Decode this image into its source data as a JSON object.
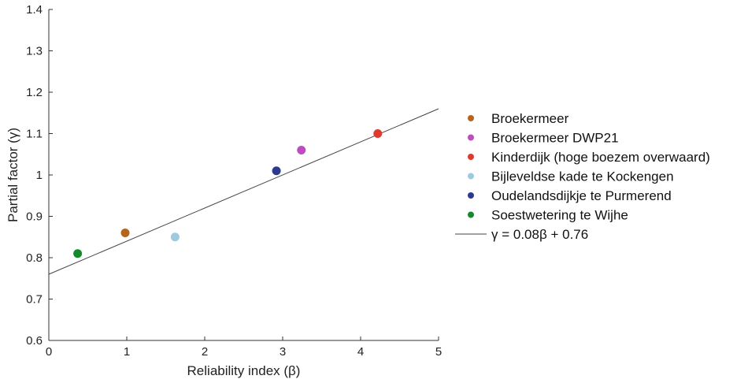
{
  "chart_data": {
    "type": "scatter",
    "xlabel": "Reliability index (β)",
    "ylabel": "Partial factor (γ)",
    "xlim": [
      0,
      5
    ],
    "ylim": [
      0.6,
      1.4
    ],
    "xticks": [
      "0",
      "1",
      "2",
      "3",
      "4",
      "5"
    ],
    "yticks": [
      "0.6",
      "0.7",
      "0.8",
      "0.9",
      "1",
      "1.1",
      "1.2",
      "1.3",
      "1.4"
    ],
    "grid": false,
    "legend_position": "right",
    "series": [
      {
        "name": "Broekermeer",
        "color": "#b5651d",
        "points": [
          {
            "x": 0.98,
            "y": 0.86
          }
        ]
      },
      {
        "name": "Broekermeer DWP21",
        "color": "#c04bc0",
        "points": [
          {
            "x": 3.24,
            "y": 1.06
          }
        ]
      },
      {
        "name": "Kinderdijk (hoge boezem overwaard)",
        "color": "#e03a2e",
        "points": [
          {
            "x": 4.22,
            "y": 1.1
          }
        ]
      },
      {
        "name": "Bijleveldse kade te Kockengen",
        "color": "#9ecae1",
        "points": [
          {
            "x": 1.62,
            "y": 0.85
          }
        ]
      },
      {
        "name": "Oudelandsdijkje te Purmerend",
        "color": "#2b3a8f",
        "points": [
          {
            "x": 2.92,
            "y": 1.01
          }
        ]
      },
      {
        "name": "Soestwetering te Wijhe",
        "color": "#138a2c",
        "points": [
          {
            "x": 0.37,
            "y": 0.81
          }
        ]
      }
    ],
    "fit_line": {
      "label": "γ = 0.08β + 0.76",
      "slope": 0.08,
      "intercept": 0.76,
      "x_range": [
        0,
        5
      ],
      "color": "#444444"
    }
  }
}
